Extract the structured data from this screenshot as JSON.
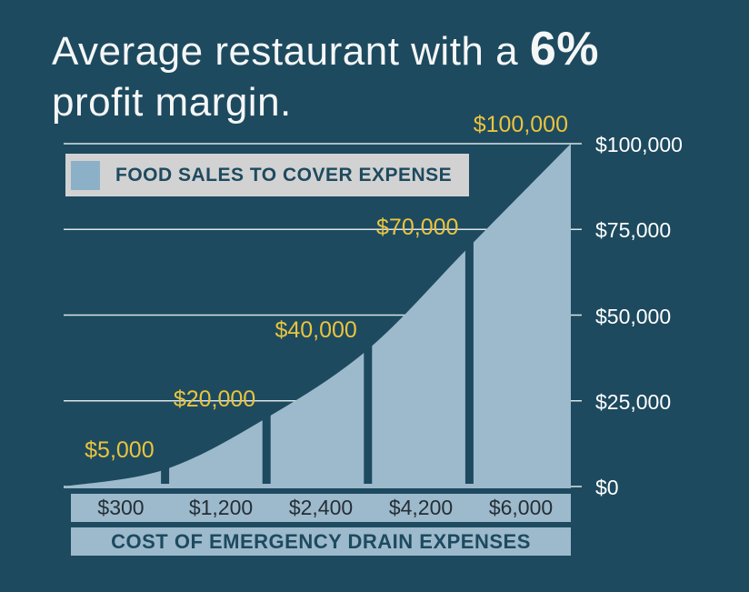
{
  "title": {
    "line1_regular": "Average restaurant with a ",
    "line1_bold": "6%",
    "line2": "profit margin."
  },
  "legend": {
    "label": "FOOD SALES TO COVER EXPENSE"
  },
  "chart_data": {
    "type": "area",
    "title": "Average restaurant with a 6% profit margin.",
    "categories": [
      "$300",
      "$1,200",
      "$2,400",
      "$4,200",
      "$6,000"
    ],
    "x_numeric": [
      300,
      1200,
      2400,
      4200,
      6000
    ],
    "series": [
      {
        "name": "FOOD SALES TO COVER EXPENSE",
        "values": [
          5000,
          20000,
          40000,
          70000,
          100000
        ]
      }
    ],
    "value_labels": [
      "$5,000",
      "$20,000",
      "$40,000",
      "$70,000",
      "$100,000"
    ],
    "xlabel": "COST OF EMERGENCY DRAIN EXPENSES",
    "ylabel": "",
    "ylim": [
      0,
      100000
    ],
    "yticks": {
      "values": [
        0,
        25000,
        50000,
        75000,
        100000
      ],
      "labels": [
        "$0",
        "$25,000",
        "$50,000",
        "$75,000",
        "$100,000"
      ]
    },
    "grid": "horizontal",
    "legend_position": "top-left",
    "colors": {
      "background": "#1d4a5f",
      "area_fill": "#9dbacc",
      "legend_bg": "#d2d2d2",
      "legend_swatch": "#8db0c9",
      "accent_yellow": "#eac43e",
      "gridline": "#ffffff",
      "ytick_text": "#ffffff",
      "band_bg": "#9dbacc",
      "band_text_dark": "#242e37",
      "band_title_navy": "#1d4a5f"
    }
  }
}
